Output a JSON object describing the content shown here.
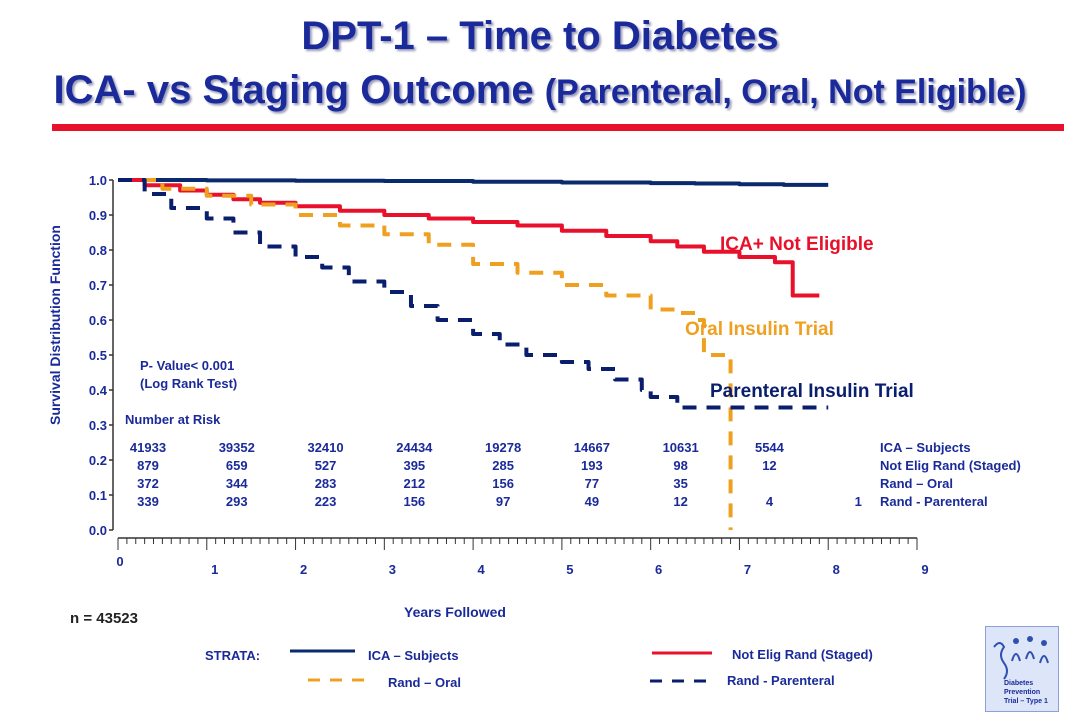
{
  "title_line1": "DPT-1 – Time to Diabetes",
  "title_line2_main": "ICA- vs Staging Outcome",
  "title_line2_paren": "(Parenteral, Oral, Not Eligible)",
  "colors": {
    "title": "#1a2a9a",
    "ica_subjects": "#0a2a6e",
    "not_elig": "#e8102a",
    "oral": "#f0a020",
    "parenteral": "#0a1e6e",
    "bar": "#e8102a"
  },
  "chart_data": {
    "type": "line",
    "title": "",
    "xlabel": "Years Followed",
    "ylabel": "Survival Distribution Function",
    "xlim": [
      0,
      9
    ],
    "ylim": [
      0,
      1
    ],
    "x_ticks": [
      "0",
      "1",
      "2",
      "3",
      "4",
      "5",
      "6",
      "7",
      "8",
      "9"
    ],
    "y_ticks": [
      "0.0",
      "0.1",
      "0.2",
      "0.3",
      "0.4",
      "0.5",
      "0.6",
      "0.7",
      "0.8",
      "0.9",
      "1.0"
    ],
    "grid": false,
    "series": [
      {
        "name": "ICA – Subjects",
        "style": "solid",
        "color": "#0a2a6e",
        "x": [
          0,
          1,
          2,
          3,
          4,
          5,
          6,
          6.5,
          7,
          7.5,
          8.0
        ],
        "y": [
          1.0,
          0.999,
          0.998,
          0.997,
          0.995,
          0.993,
          0.991,
          0.99,
          0.988,
          0.986,
          0.986
        ]
      },
      {
        "name": "Not Elig Rand (Staged)",
        "style": "solid",
        "color": "#e8102a",
        "x": [
          0,
          0.3,
          0.7,
          1.0,
          1.3,
          1.6,
          2.0,
          2.5,
          3.0,
          3.5,
          4.0,
          4.5,
          5.0,
          5.5,
          6.0,
          6.3,
          6.6,
          7.0,
          7.4,
          7.6,
          7.6,
          7.9
        ],
        "y": [
          1.0,
          0.985,
          0.97,
          0.958,
          0.945,
          0.935,
          0.925,
          0.912,
          0.9,
          0.89,
          0.88,
          0.87,
          0.855,
          0.84,
          0.825,
          0.81,
          0.795,
          0.78,
          0.765,
          0.745,
          0.67,
          0.67
        ]
      },
      {
        "name": "Rand – Oral",
        "style": "dashed",
        "color": "#f0a020",
        "x": [
          0,
          0.5,
          1.0,
          1.5,
          2.0,
          2.5,
          3.0,
          3.5,
          4.0,
          4.5,
          5.0,
          5.5,
          6.0,
          6.3,
          6.5,
          6.6,
          6.6,
          6.9,
          6.9
        ],
        "y": [
          1.0,
          0.975,
          0.955,
          0.93,
          0.9,
          0.87,
          0.845,
          0.815,
          0.76,
          0.735,
          0.7,
          0.67,
          0.63,
          0.62,
          0.6,
          0.5,
          0.5,
          0.5,
          0.0
        ]
      },
      {
        "name": "Rand - Parenteral",
        "style": "dashed",
        "color": "#0a1e6e",
        "x": [
          0,
          0.3,
          0.6,
          1.0,
          1.3,
          1.6,
          2.0,
          2.3,
          2.6,
          3.0,
          3.3,
          3.6,
          4.0,
          4.3,
          4.6,
          5.0,
          5.3,
          5.6,
          5.9,
          6.0,
          6.3,
          7.0,
          8.0
        ],
        "y": [
          1.0,
          0.96,
          0.92,
          0.89,
          0.85,
          0.81,
          0.78,
          0.75,
          0.71,
          0.68,
          0.64,
          0.6,
          0.56,
          0.53,
          0.5,
          0.48,
          0.46,
          0.43,
          0.4,
          0.38,
          0.35,
          0.35,
          0.35
        ]
      }
    ],
    "annotations": [
      {
        "text": "ICA+ Not Eligible",
        "color": "#e8102a"
      },
      {
        "text": "Oral Insulin Trial",
        "color": "#f0a020"
      },
      {
        "text": "Parenteral Insulin Trial",
        "color": "#0a1e6e"
      }
    ]
  },
  "pvalue": {
    "line1": "P- Value< 0.001",
    "line2": "(Log Rank Test)"
  },
  "risk_table": {
    "title": "Number at Risk",
    "rows": [
      {
        "label": "ICA – Subjects",
        "values": [
          "41933",
          "39352",
          "32410",
          "24434",
          "19278",
          "14667",
          "10631",
          "5544",
          ""
        ]
      },
      {
        "label": "Not Elig Rand (Staged)",
        "values": [
          "879",
          "659",
          "527",
          "395",
          "285",
          "193",
          "98",
          "12",
          ""
        ]
      },
      {
        "label": "Rand – Oral",
        "values": [
          "372",
          "344",
          "283",
          "212",
          "156",
          "77",
          "35",
          "",
          ""
        ]
      },
      {
        "label": "Rand - Parenteral",
        "values": [
          "339",
          "293",
          "223",
          "156",
          "97",
          "49",
          "12",
          "4",
          "1"
        ]
      }
    ]
  },
  "n_label": "n = 43523",
  "legend": {
    "strata_label": "STRATA:",
    "items": [
      "ICA – Subjects",
      "Not Elig Rand (Staged)",
      "Rand – Oral",
      "Rand - Parenteral"
    ]
  },
  "logo": {
    "line1": "Diabetes",
    "line2": "Prevention",
    "line3": "Trial – Type 1"
  }
}
